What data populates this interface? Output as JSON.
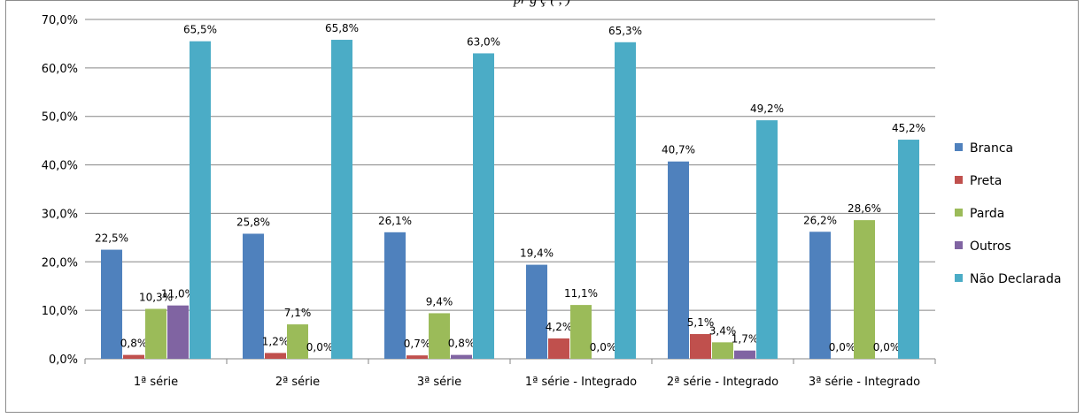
{
  "chart_data": {
    "type": "bar",
    "title": "pr                                       g                     ç (        ,      )",
    "categories": [
      "1ª série",
      "2ª série",
      "3ª série",
      "1ª série - Integrado",
      "2ª série - Integrado",
      "3ª série - Integrado"
    ],
    "series": [
      {
        "name": "Branca",
        "color": "#4f81bd",
        "values": [
          22.5,
          25.8,
          26.1,
          19.4,
          40.7,
          26.2
        ],
        "labels": [
          "22,5%",
          "25,8%",
          "26,1%",
          "19,4%",
          "40,7%",
          "26,2%"
        ]
      },
      {
        "name": "Preta",
        "color": "#c0504d",
        "values": [
          0.8,
          1.2,
          0.7,
          4.2,
          5.1,
          0.0
        ],
        "labels": [
          "0,8%",
          "1,2%",
          "0,7%",
          "4,2%",
          "5,1%",
          "0,0%"
        ]
      },
      {
        "name": "Parda",
        "color": "#9bbb59",
        "values": [
          10.3,
          7.1,
          9.4,
          11.1,
          3.4,
          28.6
        ],
        "labels": [
          "10,3%",
          "7,1%",
          "9,4%",
          "11,1%",
          "3,4%",
          "28,6%"
        ]
      },
      {
        "name": "Outros",
        "color": "#8064a2",
        "values": [
          11.0,
          0.0,
          0.8,
          0.0,
          1.7,
          0.0
        ],
        "labels": [
          "11,0%",
          "0,0%",
          "0,8%",
          "0,0%",
          "1,7%",
          "0,0%"
        ]
      },
      {
        "name": "Não Declarada",
        "color": "#4bacc6",
        "values": [
          65.5,
          65.8,
          63.0,
          65.3,
          49.2,
          45.2
        ],
        "labels": [
          "65,5%",
          "65,8%",
          "63,0%",
          "65,3%",
          "49,2%",
          "45,2%"
        ]
      }
    ],
    "ylim": [
      0,
      70
    ],
    "yticks": [
      "0,0%",
      "10,0%",
      "20,0%",
      "30,0%",
      "40,0%",
      "50,0%",
      "60,0%",
      "70,0%"
    ],
    "grid": true,
    "legend": "right"
  }
}
